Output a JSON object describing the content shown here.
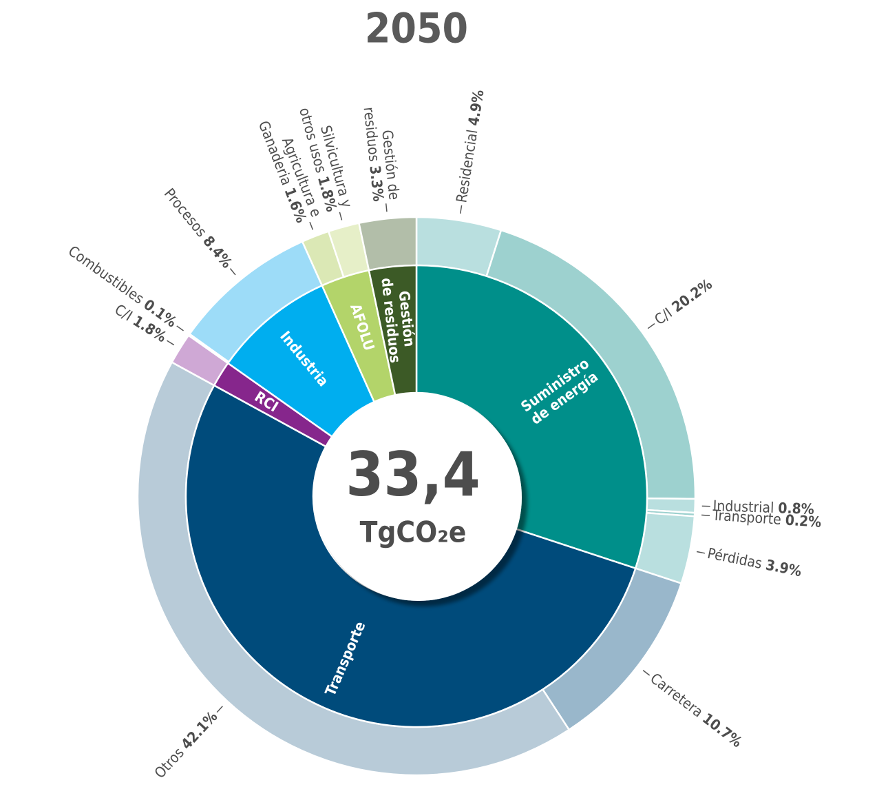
{
  "chart_data": {
    "type": "sunburst",
    "title": "2050",
    "center": {
      "total": {
        "value": 33.4,
        "label": "33,4"
      },
      "unit": "TgCO₂e"
    },
    "groups": [
      {
        "name": [
          "Suministro",
          "de energía"
        ],
        "color": "#008f8a",
        "children": [
          {
            "name": [
              "Residencial"
            ],
            "value": 4.9,
            "value_label": "4.9%",
            "color": "#b9dfdf"
          },
          {
            "name": [
              "C/I"
            ],
            "value": 20.2,
            "value_label": "20.2%",
            "color": "#9dd1cf"
          },
          {
            "name": [
              "Industrial"
            ],
            "value": 0.8,
            "value_label": "0.8%",
            "color": "#b9dfdf"
          },
          {
            "name": [
              "Transporte"
            ],
            "value": 0.2,
            "value_label": "0.2%",
            "color": "#9dd1cf"
          },
          {
            "name": [
              "Pérdidas"
            ],
            "value": 3.9,
            "value_label": "3.9%",
            "color": "#b9dfdf"
          }
        ]
      },
      {
        "name": [
          "Transporte"
        ],
        "color": "#004b7b",
        "children": [
          {
            "name": [
              "Carretera"
            ],
            "value": 10.7,
            "value_label": "10.7%",
            "color": "#99b7cb"
          },
          {
            "name": [
              "Otros"
            ],
            "value": 42.1,
            "value_label": "42.1%",
            "color": "#b8cbd8"
          }
        ]
      },
      {
        "name": [
          "RCI"
        ],
        "color": "#86268c",
        "children": [
          {
            "name": [
              "C/I"
            ],
            "value": 1.8,
            "value_label": "1.8%",
            "color": "#cfa8d5"
          }
        ]
      },
      {
        "name": [
          "Industria"
        ],
        "color": "#00aeef",
        "children": [
          {
            "name": [
              "Combustibles"
            ],
            "value": 0.1,
            "value_label": "0.1%",
            "color": "#c9e9f8"
          },
          {
            "name": [
              "Procesos"
            ],
            "value": 8.4,
            "value_label": "8.4%",
            "color": "#9ddcf8"
          }
        ]
      },
      {
        "name": [
          "AFOLU"
        ],
        "color": "#b3d46a",
        "children": [
          {
            "name": [
              "Agricultura e",
              "Ganaderia"
            ],
            "value": 1.6,
            "value_label": "1.6%",
            "color": "#dbe8b5"
          },
          {
            "name": [
              "Silvicultura y",
              "otros usos"
            ],
            "value": 1.8,
            "value_label": "1.8%",
            "color": "#e6efc8"
          }
        ]
      },
      {
        "name": [
          "Gestión",
          "de residuos"
        ],
        "color": "#3c5a26",
        "children": [
          {
            "name": [
              "Gestión de",
              "residuos"
            ],
            "value": 3.3,
            "value_label": "3.3%",
            "color": "#b2bea9"
          }
        ]
      }
    ]
  }
}
